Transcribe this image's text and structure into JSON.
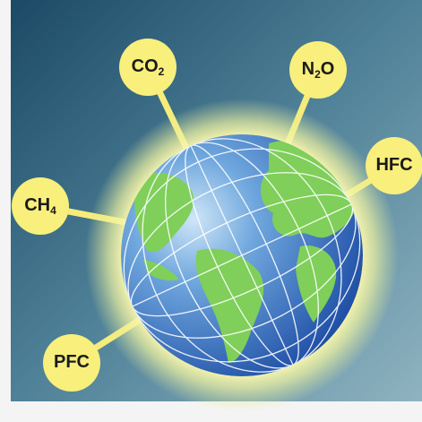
{
  "nodes": [
    {
      "parts": [
        {
          "text": "CO"
        },
        {
          "text": "2",
          "sub": true
        }
      ]
    },
    {
      "parts": [
        {
          "text": "N"
        },
        {
          "text": "2",
          "sub": true
        },
        {
          "text": "O"
        }
      ]
    },
    {
      "parts": [
        {
          "text": "HFC"
        }
      ]
    },
    {
      "parts": [
        {
          "text": "CH"
        },
        {
          "text": "4",
          "sub": true
        }
      ]
    },
    {
      "parts": [
        {
          "text": "PFC"
        }
      ]
    }
  ]
}
